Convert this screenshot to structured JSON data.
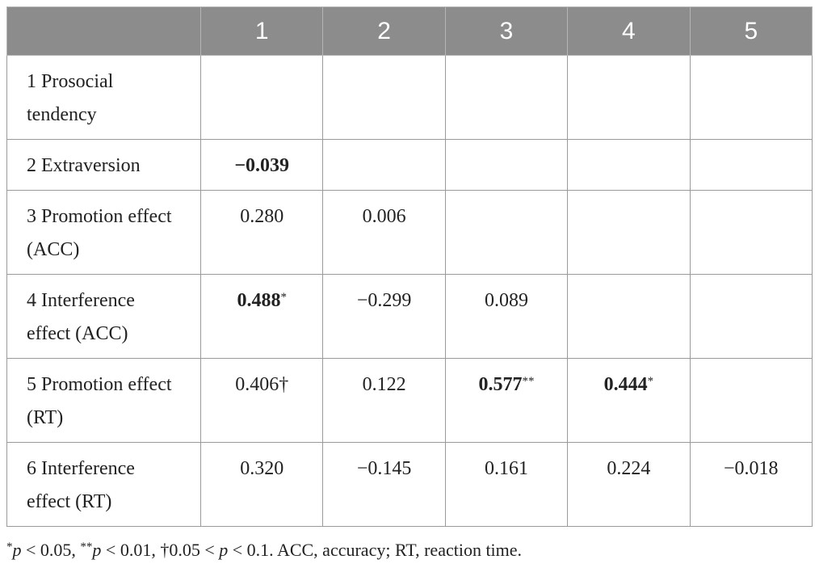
{
  "table": {
    "header": [
      "",
      "1",
      "2",
      "3",
      "4",
      "5"
    ],
    "rows": [
      {
        "label": "1 Prosocial tendency",
        "cells": [
          null,
          null,
          null,
          null,
          null
        ]
      },
      {
        "label": "2 Extraversion",
        "cells": [
          {
            "text": "−0.039",
            "bold": true
          },
          null,
          null,
          null,
          null
        ]
      },
      {
        "label": "3 Promotion effect (ACC)",
        "cells": [
          {
            "text": "0.280"
          },
          {
            "text": "0.006"
          },
          null,
          null,
          null
        ]
      },
      {
        "label": "4 Interference effect (ACC)",
        "cells": [
          {
            "text": "0.488",
            "bold": true,
            "note": "*"
          },
          {
            "text": "−0.299"
          },
          {
            "text": "0.089"
          },
          null,
          null
        ]
      },
      {
        "label": "5 Promotion effect (RT)",
        "cells": [
          {
            "text": "0.406†"
          },
          {
            "text": "0.122"
          },
          {
            "text": "0.577",
            "bold": true,
            "note": "**"
          },
          {
            "text": "0.444",
            "bold": true,
            "note": "*"
          },
          null
        ]
      },
      {
        "label": "6 Interference effect (RT)",
        "cells": [
          {
            "text": "0.320"
          },
          {
            "text": "−0.145"
          },
          {
            "text": "0.161"
          },
          {
            "text": "0.224"
          },
          {
            "text": "−0.018"
          }
        ]
      }
    ]
  },
  "footnote": [
    {
      "text": "*",
      "style": "sup"
    },
    {
      "text": "p",
      "style": "i"
    },
    {
      "text": " < 0.05, "
    },
    {
      "text": "**",
      "style": "sup"
    },
    {
      "text": "p",
      "style": "i"
    },
    {
      "text": " < 0.01, †0.05 < "
    },
    {
      "text": "p",
      "style": "i"
    },
    {
      "text": " < 0.1. ACC, accuracy; RT, reaction time."
    }
  ]
}
